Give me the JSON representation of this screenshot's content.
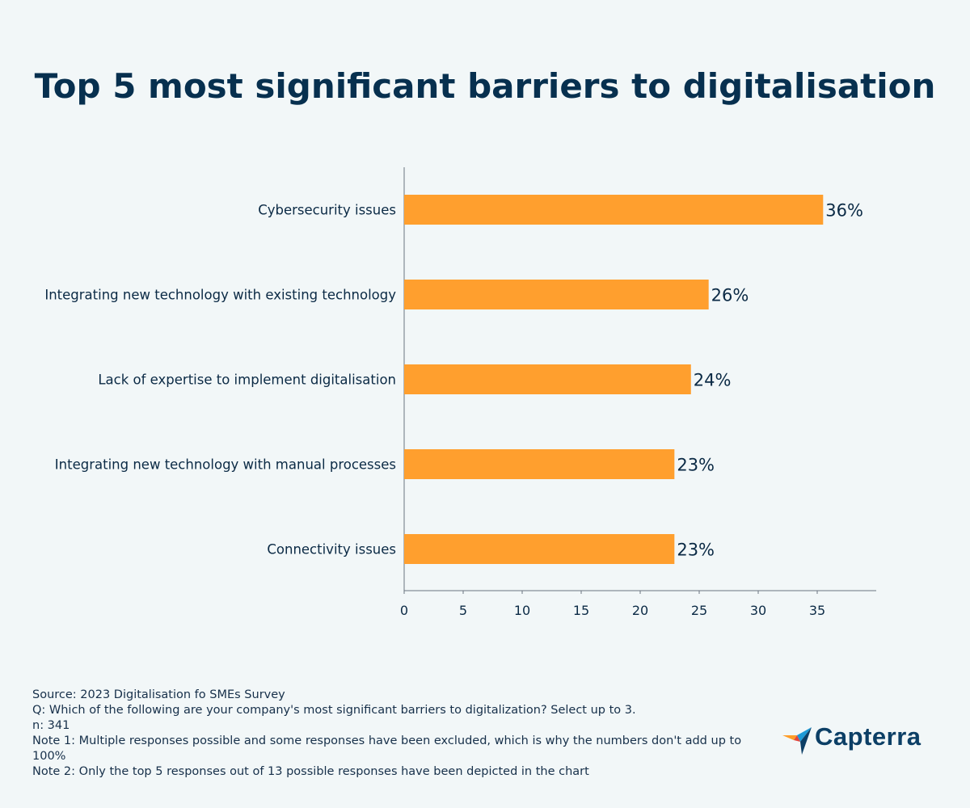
{
  "page": {
    "title": "Top 5 most significant barriers to digitalisation"
  },
  "chart_data": {
    "type": "bar",
    "orientation": "horizontal",
    "title": "Top 5 most significant barriers to digitalisation",
    "categories": [
      "Cybersecurity issues",
      "Integrating new technology with existing technology",
      "Lack of expertise to implement digitalisation",
      "Integrating new technology with manual processes",
      "Connectivity issues"
    ],
    "values": [
      35.5,
      25.8,
      24.3,
      22.9,
      22.9
    ],
    "data_labels": [
      "36%",
      "26%",
      "24%",
      "23%",
      "23%"
    ],
    "xlim": [
      0,
      40
    ],
    "xticks": [
      0,
      5,
      10,
      15,
      20,
      25,
      30,
      35
    ],
    "xlabel": "",
    "ylabel": "",
    "grid": false,
    "legend": "none",
    "bar_color": "#ff9f2e"
  },
  "notes": {
    "source": "Source: 2023 Digitalisation fo SMEs Survey",
    "question": "Q: Which of the following are your company's most significant barriers to digitalization? Select up to 3.",
    "n": "n: 341",
    "note1": "Note 1: Multiple responses possible and some responses have been excluded, which is why the numbers don't add up to 100%",
    "note2": "Note 2: Only the top 5 responses out of 13 possible responses have been depicted in the chart"
  },
  "brand": {
    "name": "Capterra",
    "colors": {
      "text": "#0c3f66",
      "orange": "#ff9d28",
      "blue": "#1e9ad6",
      "red": "#e2453c",
      "navy": "#0c3f66"
    }
  }
}
